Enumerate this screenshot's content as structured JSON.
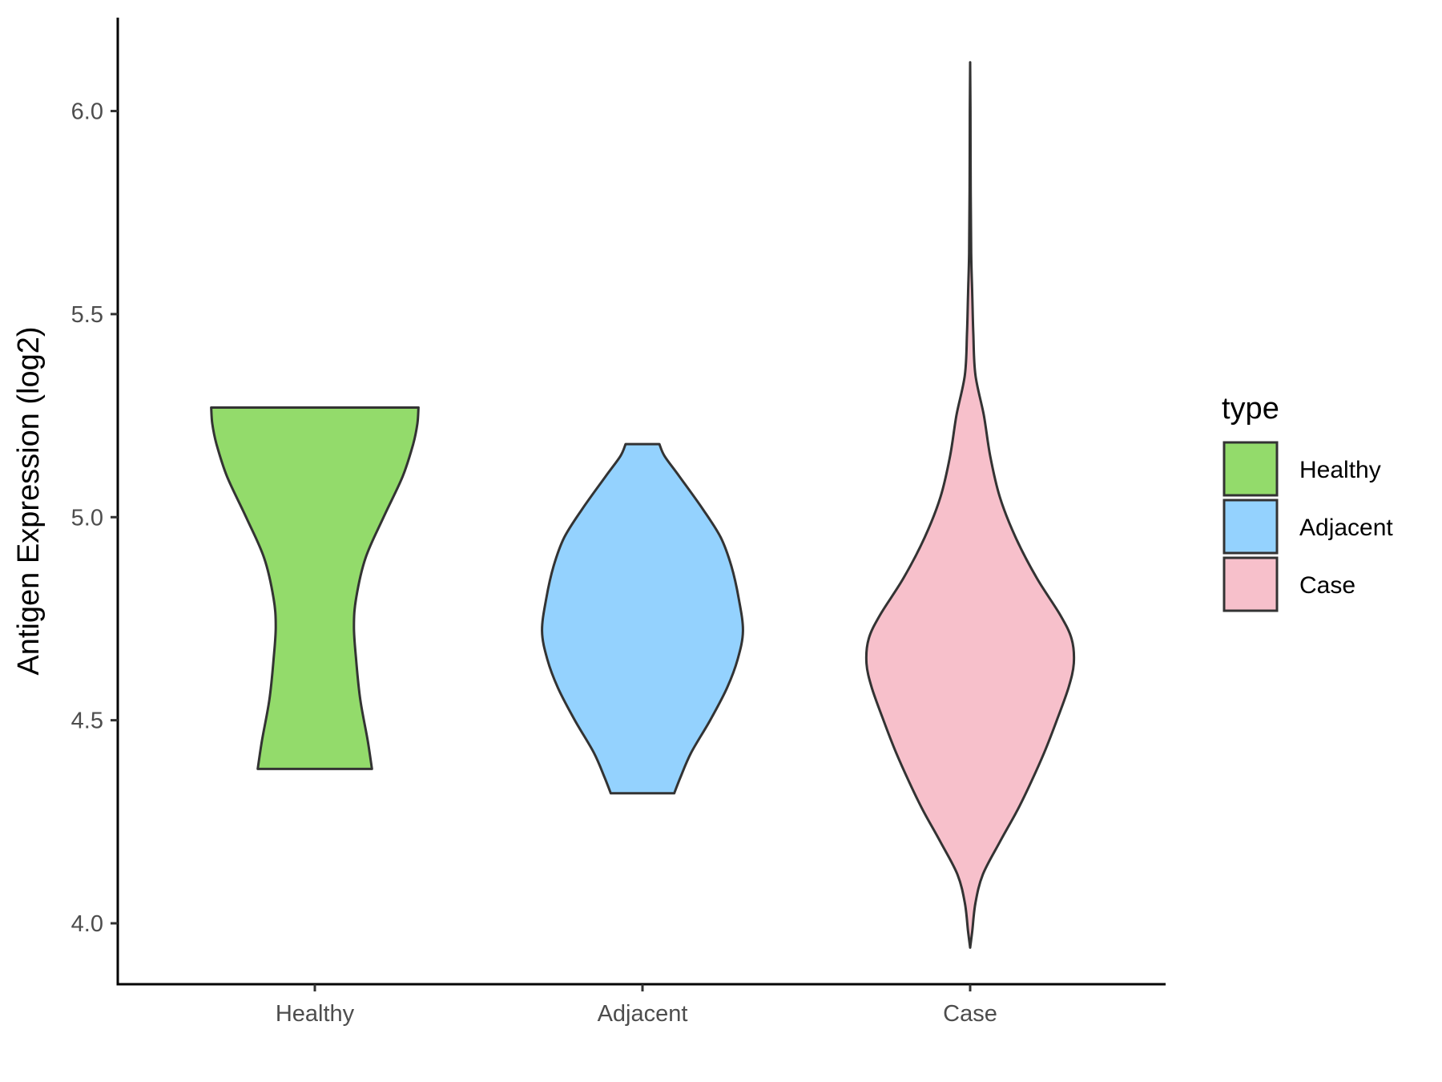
{
  "chart_data": {
    "type": "violin",
    "title": "",
    "xlabel": "",
    "ylabel": "Antigen Expression (log2)",
    "ylim": [
      3.85,
      6.23
    ],
    "yticks": [
      "4.0",
      "4.5",
      "5.0",
      "5.5",
      "6.0"
    ],
    "categories": [
      "Healthy",
      "Adjacent",
      "Case"
    ],
    "grid": false,
    "legend": {
      "title": "type",
      "placement": "right",
      "entries": [
        "Healthy",
        "Adjacent",
        "Case"
      ]
    },
    "series": [
      {
        "name": "Healthy",
        "color": "#93DB6B",
        "min": 4.38,
        "max": 5.27,
        "profile": [
          [
            4.38,
            0.54
          ],
          [
            4.45,
            0.5
          ],
          [
            4.55,
            0.43
          ],
          [
            4.65,
            0.39
          ],
          [
            4.73,
            0.37
          ],
          [
            4.8,
            0.39
          ],
          [
            4.9,
            0.48
          ],
          [
            5.0,
            0.65
          ],
          [
            5.1,
            0.83
          ],
          [
            5.18,
            0.93
          ],
          [
            5.23,
            0.97
          ],
          [
            5.27,
            0.98
          ]
        ]
      },
      {
        "name": "Adjacent",
        "color": "#94D2FE",
        "min": 4.32,
        "max": 5.18,
        "profile": [
          [
            4.32,
            0.3
          ],
          [
            4.36,
            0.36
          ],
          [
            4.42,
            0.46
          ],
          [
            4.5,
            0.64
          ],
          [
            4.58,
            0.8
          ],
          [
            4.65,
            0.9
          ],
          [
            4.72,
            0.95
          ],
          [
            4.8,
            0.91
          ],
          [
            4.88,
            0.84
          ],
          [
            4.95,
            0.74
          ],
          [
            5.02,
            0.57
          ],
          [
            5.1,
            0.35
          ],
          [
            5.15,
            0.21
          ],
          [
            5.18,
            0.16
          ]
        ]
      },
      {
        "name": "Case",
        "color": "#F7C0CB",
        "min": 3.94,
        "max": 6.12,
        "profile": [
          [
            3.94,
            0.0
          ],
          [
            3.98,
            0.02
          ],
          [
            4.05,
            0.05
          ],
          [
            4.12,
            0.12
          ],
          [
            4.2,
            0.28
          ],
          [
            4.28,
            0.45
          ],
          [
            4.35,
            0.58
          ],
          [
            4.42,
            0.7
          ],
          [
            4.5,
            0.82
          ],
          [
            4.58,
            0.93
          ],
          [
            4.64,
            0.98
          ],
          [
            4.7,
            0.96
          ],
          [
            4.76,
            0.85
          ],
          [
            4.85,
            0.63
          ],
          [
            4.95,
            0.43
          ],
          [
            5.05,
            0.28
          ],
          [
            5.15,
            0.19
          ],
          [
            5.25,
            0.13
          ],
          [
            5.35,
            0.05
          ],
          [
            5.45,
            0.03
          ],
          [
            5.55,
            0.02
          ],
          [
            5.65,
            0.01
          ],
          [
            5.8,
            0.005
          ],
          [
            6.0,
            0.003
          ],
          [
            6.12,
            0.0
          ]
        ]
      }
    ]
  }
}
